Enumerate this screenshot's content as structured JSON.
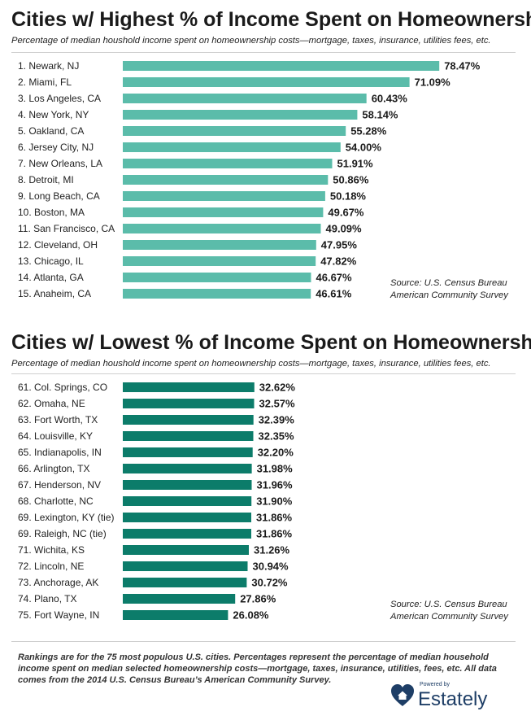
{
  "charts": [
    {
      "title": "Cities w/ Highest % of Income Spent on Homeownership",
      "subtitle": "Percentage of median houshold income spent on homeownership costs—mortgage, taxes, insurance, utilities fees, etc.",
      "source_line1": "Source:  U.S. Census Bureau",
      "source_line2": "American Community Survey"
    },
    {
      "title": "Cities w/ Lowest % of Income Spent on Homeownership",
      "subtitle": "Percentage of median houshold income spent on homeownership costs—mortgage, taxes, insurance, utilities fees, etc.",
      "source_line1": "Source:  U.S. Census Bureau",
      "source_line2": "American Community Survey"
    }
  ],
  "chart_data": [
    {
      "type": "bar",
      "orientation": "horizontal",
      "title": "Cities w/ Highest % of Income Spent on Homeownership",
      "subtitle": "Percentage of median houshold income spent on homeownership costs—mortgage, taxes, insurance, utilities fees, etc.",
      "categories": [
        "1. Newark, NJ",
        "2. Miami, FL",
        "3. Los Angeles, CA",
        "4. New York, NY",
        "5. Oakland, CA",
        "6. Jersey City, NJ",
        "7. New Orleans, LA",
        "8. Detroit, MI",
        "9. Long Beach, CA",
        "10. Boston, MA",
        "11. San Francisco, CA",
        "12. Cleveland, OH",
        "13. Chicago, IL",
        "14. Atlanta, GA",
        "15. Anaheim, CA"
      ],
      "values": [
        78.47,
        71.09,
        60.43,
        58.14,
        55.28,
        54.0,
        51.91,
        50.86,
        50.18,
        49.67,
        49.09,
        47.95,
        47.82,
        46.67,
        46.61
      ],
      "value_labels": [
        "78.47%",
        "71.09%",
        "60.43%",
        "58.14%",
        "55.28%",
        "54.00%",
        "51.91%",
        "50.86%",
        "50.18%",
        "49.67%",
        "49.09%",
        "47.95%",
        "47.82%",
        "46.67%",
        "46.61%"
      ],
      "bar_color": "#5bbcaa",
      "xlim": [
        0,
        100
      ],
      "grid": false,
      "legend": "none"
    },
    {
      "type": "bar",
      "orientation": "horizontal",
      "title": "Cities w/ Lowest % of Income Spent on Homeownership",
      "subtitle": "Percentage of median houshold income spent on homeownership costs—mortgage, taxes, insurance, utilities fees, etc.",
      "categories": [
        "61. Col. Springs, CO",
        "62. Omaha, NE",
        "63. Fort Worth, TX",
        "64. Louisville, KY",
        "65. Indianapolis, IN",
        "66. Arlington, TX",
        "67. Henderson, NV",
        "68. Charlotte, NC",
        "69. Lexington, KY (tie)",
        "69. Raleigh, NC (tie)",
        "71. Wichita, KS",
        "72. Lincoln, NE",
        "73. Anchorage, AK",
        "74. Plano, TX",
        "75. Fort Wayne, IN"
      ],
      "values": [
        32.62,
        32.57,
        32.39,
        32.35,
        32.2,
        31.98,
        31.96,
        31.9,
        31.86,
        31.86,
        31.26,
        30.94,
        30.72,
        27.86,
        26.08
      ],
      "value_labels": [
        "32.62%",
        "32.57%",
        "32.39%",
        "32.35%",
        "32.20%",
        "31.98%",
        "31.96%",
        "31.90%",
        "31.86%",
        "31.86%",
        "31.26%",
        "30.94%",
        "30.72%",
        "27.86%",
        "26.08%"
      ],
      "bar_color": "#0c7c6a",
      "xlim": [
        0,
        100
      ],
      "grid": false,
      "legend": "none"
    }
  ],
  "footnote": {
    "line1": "Rankings are for the 75 most populous U.S. cities. Percentages represent the percentage of median household",
    "line2": "income spent on median selected homeownership costs—mortgage, taxes, insurance, utilities, fees, etc. All data",
    "line3": "comes from the 2014 U.S. Census Bureau’s American Community Survey."
  },
  "logo": {
    "powered_by": "Powered by",
    "brand": "Estately",
    "icon": "house-heart-icon",
    "color": "#1e3e66"
  }
}
